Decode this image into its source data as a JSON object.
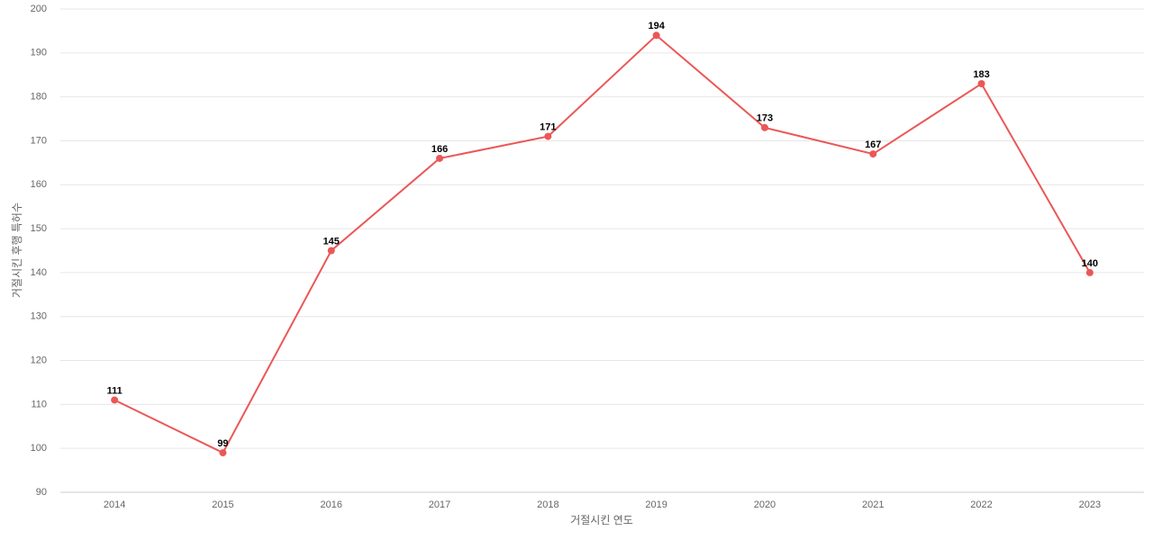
{
  "chart_data": {
    "type": "line",
    "x_label": "거절시킨 연도",
    "y_label": "거절시킨 후행 특허수",
    "categories": [
      "2014",
      "2015",
      "2016",
      "2017",
      "2018",
      "2019",
      "2020",
      "2021",
      "2022",
      "2023"
    ],
    "series": [
      {
        "name": "후행 특허수",
        "color": "#eb5757",
        "values": [
          111,
          99,
          145,
          166,
          171,
          194,
          173,
          167,
          183,
          140
        ]
      }
    ],
    "ylim": [
      90,
      200
    ],
    "yticks": [
      90,
      100,
      110,
      120,
      130,
      140,
      150,
      160,
      170,
      180,
      190,
      200
    ],
    "grid": true
  }
}
